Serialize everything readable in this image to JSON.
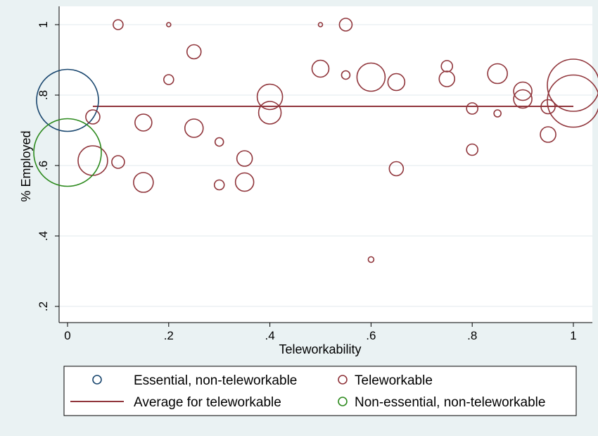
{
  "chart_data": {
    "type": "scatter",
    "xlabel": "Teleworkability",
    "ylabel": "% Employed",
    "xlim": [
      0,
      1
    ],
    "ylim": [
      0.2,
      1
    ],
    "x_ticks": [
      0,
      0.2,
      0.4,
      0.6,
      0.8,
      1
    ],
    "x_tick_labels": [
      "0",
      ".2",
      ".4",
      ".6",
      ".8",
      "1"
    ],
    "y_ticks": [
      0.2,
      0.4,
      0.6,
      0.8,
      1
    ],
    "y_tick_labels": [
      ".2",
      ".4",
      ".6",
      ".8",
      "1"
    ],
    "grid": "horizontal",
    "bubble_size_note": "marker area proportional to weight",
    "series": [
      {
        "name": "Essential, non-teleworkable",
        "kind": "bubble",
        "color": "#1a476f",
        "points": [
          {
            "x": 0.0,
            "y": 0.785,
            "r": 44
          }
        ]
      },
      {
        "name": "Teleworkable",
        "kind": "bubble",
        "color": "#90353b",
        "points": [
          {
            "x": 0.1,
            "y": 1.0,
            "r": 7
          },
          {
            "x": 0.2,
            "y": 1.0,
            "r": 3
          },
          {
            "x": 0.5,
            "y": 1.0,
            "r": 3
          },
          {
            "x": 0.55,
            "y": 1.0,
            "r": 9
          },
          {
            "x": 0.25,
            "y": 0.923,
            "r": 10
          },
          {
            "x": 0.5,
            "y": 0.875,
            "r": 12
          },
          {
            "x": 0.55,
            "y": 0.857,
            "r": 6
          },
          {
            "x": 0.2,
            "y": 0.844,
            "r": 7
          },
          {
            "x": 0.6,
            "y": 0.851,
            "r": 20
          },
          {
            "x": 0.65,
            "y": 0.837,
            "r": 12
          },
          {
            "x": 0.75,
            "y": 0.882,
            "r": 8
          },
          {
            "x": 0.75,
            "y": 0.846,
            "r": 11
          },
          {
            "x": 0.85,
            "y": 0.861,
            "r": 14
          },
          {
            "x": 0.9,
            "y": 0.811,
            "r": 13
          },
          {
            "x": 0.9,
            "y": 0.789,
            "r": 13
          },
          {
            "x": 1.0,
            "y": 0.828,
            "r": 37
          },
          {
            "x": 1.0,
            "y": 0.783,
            "r": 37
          },
          {
            "x": 0.4,
            "y": 0.795,
            "r": 18
          },
          {
            "x": 0.4,
            "y": 0.75,
            "r": 16
          },
          {
            "x": 0.8,
            "y": 0.762,
            "r": 8
          },
          {
            "x": 0.85,
            "y": 0.748,
            "r": 5
          },
          {
            "x": 0.95,
            "y": 0.767,
            "r": 10
          },
          {
            "x": 0.95,
            "y": 0.688,
            "r": 11
          },
          {
            "x": 0.05,
            "y": 0.738,
            "r": 10
          },
          {
            "x": 0.15,
            "y": 0.722,
            "r": 12
          },
          {
            "x": 0.25,
            "y": 0.706,
            "r": 13
          },
          {
            "x": 0.3,
            "y": 0.667,
            "r": 6
          },
          {
            "x": 0.8,
            "y": 0.645,
            "r": 8
          },
          {
            "x": 0.35,
            "y": 0.62,
            "r": 11
          },
          {
            "x": 0.05,
            "y": 0.614,
            "r": 21
          },
          {
            "x": 0.1,
            "y": 0.61,
            "r": 9
          },
          {
            "x": 0.65,
            "y": 0.591,
            "r": 10
          },
          {
            "x": 0.15,
            "y": 0.552,
            "r": 14
          },
          {
            "x": 0.3,
            "y": 0.545,
            "r": 7
          },
          {
            "x": 0.35,
            "y": 0.553,
            "r": 13
          },
          {
            "x": 0.6,
            "y": 0.333,
            "r": 4
          }
        ]
      },
      {
        "name": "Non-essential, non-teleworkable",
        "kind": "bubble",
        "color": "#2d8a1e",
        "points": [
          {
            "x": 0.0,
            "y": 0.637,
            "r": 48
          }
        ]
      },
      {
        "name": "Average for teleworkable",
        "kind": "line",
        "color": "#90353b",
        "x": [
          0.05,
          1.0
        ],
        "y": [
          0.768,
          0.768
        ]
      }
    ],
    "legend": {
      "placement": "bottom",
      "entries": [
        {
          "label": "Essential, non-teleworkable",
          "symbol": "circle",
          "color": "#1a476f"
        },
        {
          "label": "Teleworkable",
          "symbol": "circle",
          "color": "#90353b"
        },
        {
          "label": "Average for teleworkable",
          "symbol": "line",
          "color": "#90353b"
        },
        {
          "label": "Non-essential, non-teleworkable",
          "symbol": "circle",
          "color": "#2d8a1e"
        }
      ]
    }
  }
}
